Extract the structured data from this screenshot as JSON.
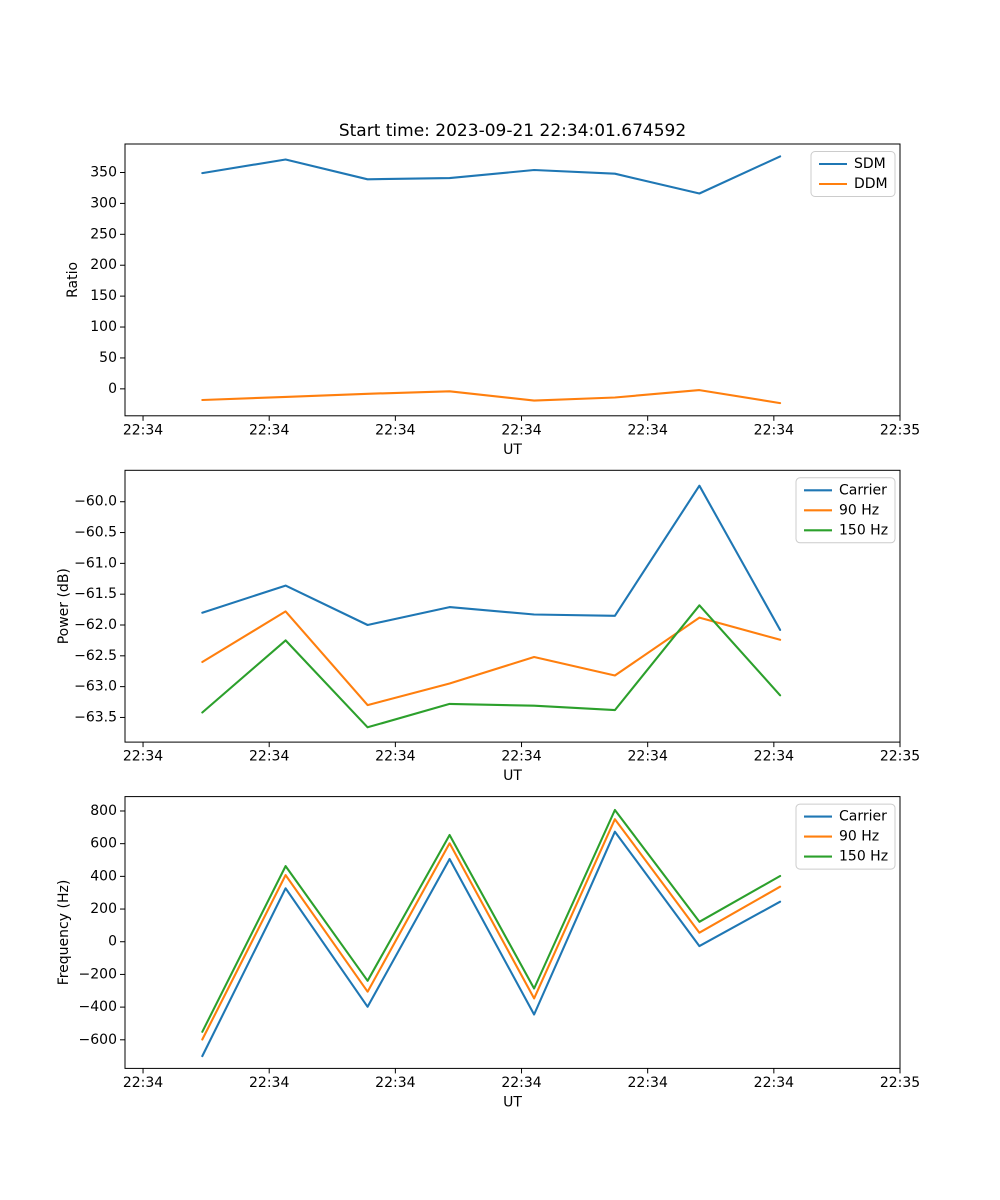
{
  "figure_title": "Start time: 2023-09-21 22:34:01.674592",
  "colors": {
    "blue": "#1f77b4",
    "orange": "#ff7f0e",
    "green": "#2ca02c"
  },
  "chart_data": [
    {
      "type": "line",
      "title": "",
      "xlabel": "UT",
      "ylabel": "Ratio",
      "grid": false,
      "legend_position": "upper right",
      "x_seconds_after_2234": [
        4.7,
        11.3,
        17.8,
        24.3,
        31.0,
        37.4,
        44.1,
        50.5
      ],
      "xlim_seconds": [
        -1.43,
        60.0
      ],
      "xticks_seconds": [
        0,
        10,
        20,
        30,
        40,
        50,
        60
      ],
      "xtick_labels": [
        "22:34",
        "22:34",
        "22:34",
        "22:34",
        "22:34",
        "22:34",
        "22:35"
      ],
      "ylim": [
        -43.6,
        396.1
      ],
      "yticks": [
        0,
        50,
        100,
        150,
        200,
        250,
        300,
        350
      ],
      "ytick_labels": [
        "0",
        "50",
        "100",
        "150",
        "200",
        "250",
        "300",
        "350"
      ],
      "series": [
        {
          "name": "SDM",
          "color": "#1f77b4",
          "values": [
            349,
            371,
            339,
            341,
            354,
            348,
            316,
            376
          ]
        },
        {
          "name": "DDM",
          "color": "#ff7f0e",
          "values": [
            -18,
            -13,
            -8,
            -4,
            -19,
            -14,
            -2,
            -23
          ]
        }
      ]
    },
    {
      "type": "line",
      "title": "",
      "xlabel": "UT",
      "ylabel": "Power (dB)",
      "grid": false,
      "legend_position": "upper right",
      "x_seconds_after_2234": [
        4.7,
        11.3,
        17.8,
        24.3,
        31.0,
        37.4,
        44.1,
        50.5
      ],
      "xlim_seconds": [
        -1.43,
        60.0
      ],
      "xticks_seconds": [
        0,
        10,
        20,
        30,
        40,
        50,
        60
      ],
      "xtick_labels": [
        "22:34",
        "22:34",
        "22:34",
        "22:34",
        "22:34",
        "22:34",
        "22:35"
      ],
      "ylim": [
        -63.9,
        -59.49
      ],
      "yticks": [
        -63.5,
        -63.0,
        -62.5,
        -62.0,
        -61.5,
        -61.0,
        -60.5,
        -60.0
      ],
      "ytick_labels": [
        "−63.5",
        "−63.0",
        "−62.5",
        "−62.0",
        "−61.5",
        "−61.0",
        "−60.5",
        "−60.0"
      ],
      "series": [
        {
          "name": "Carrier",
          "color": "#1f77b4",
          "values": [
            -61.8,
            -61.36,
            -62.0,
            -61.71,
            -61.83,
            -61.85,
            -59.74,
            -62.08
          ]
        },
        {
          "name": "90 Hz",
          "color": "#ff7f0e",
          "values": [
            -62.6,
            -61.78,
            -63.3,
            -62.95,
            -62.52,
            -62.82,
            -61.88,
            -62.24
          ]
        },
        {
          "name": "150 Hz",
          "color": "#2ca02c",
          "values": [
            -63.42,
            -62.25,
            -63.66,
            -63.28,
            -63.31,
            -63.38,
            -61.68,
            -63.14
          ]
        }
      ]
    },
    {
      "type": "line",
      "title": "",
      "xlabel": "UT",
      "ylabel": "Frequency (Hz)",
      "grid": false,
      "legend_position": "upper right",
      "x_seconds_after_2234": [
        4.7,
        11.3,
        17.8,
        24.3,
        31.0,
        37.4,
        44.1,
        50.5
      ],
      "xlim_seconds": [
        -1.43,
        60.0
      ],
      "xticks_seconds": [
        0,
        10,
        20,
        30,
        40,
        50,
        60
      ],
      "xtick_labels": [
        "22:34",
        "22:34",
        "22:34",
        "22:34",
        "22:34",
        "22:34",
        "22:35"
      ],
      "ylim": [
        -775,
        888
      ],
      "yticks": [
        -600,
        -400,
        -200,
        0,
        200,
        400,
        600,
        800
      ],
      "ytick_labels": [
        "−600",
        "−400",
        "−200",
        "0",
        "200",
        "400",
        "600",
        "800"
      ],
      "series": [
        {
          "name": "Carrier",
          "color": "#1f77b4",
          "values": [
            -700,
            327,
            -398,
            506,
            -445,
            673,
            -27,
            245
          ]
        },
        {
          "name": "90 Hz",
          "color": "#ff7f0e",
          "values": [
            -598,
            408,
            -306,
            602,
            -347,
            750,
            55,
            337
          ]
        },
        {
          "name": "150 Hz",
          "color": "#2ca02c",
          "values": [
            -551,
            463,
            -239,
            653,
            -286,
            806,
            122,
            402
          ]
        }
      ]
    }
  ]
}
